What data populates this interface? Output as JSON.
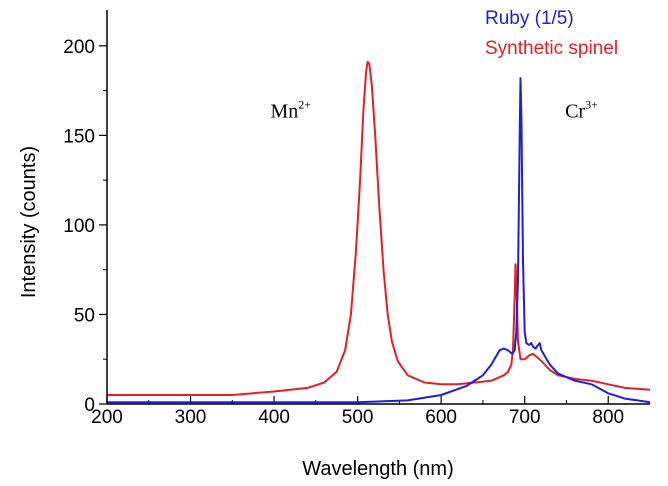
{
  "chart_data": {
    "type": "line",
    "xlabel": "Wavelength (nm)",
    "ylabel": "Intensity (counts)",
    "xlim": [
      200,
      850
    ],
    "ylim": [
      0,
      220
    ],
    "x_ticks": [
      200,
      300,
      400,
      500,
      600,
      700,
      800
    ],
    "y_ticks": [
      0,
      50,
      100,
      150,
      200
    ],
    "legend_position": "top-right",
    "annotations": [
      {
        "base": "Mn",
        "sup": "2+",
        "x": 420,
        "y": 160
      },
      {
        "base": "Cr",
        "sup": "3+",
        "x": 768,
        "y": 160
      }
    ],
    "series": [
      {
        "name": "Ruby (1/5)",
        "color": "#1f1fd6",
        "points": [
          [
            200,
            1
          ],
          [
            400,
            1
          ],
          [
            500,
            1
          ],
          [
            560,
            2
          ],
          [
            600,
            5
          ],
          [
            630,
            10
          ],
          [
            650,
            16
          ],
          [
            660,
            22
          ],
          [
            665,
            26
          ],
          [
            670,
            30
          ],
          [
            675,
            31
          ],
          [
            680,
            30
          ],
          [
            685,
            28
          ],
          [
            688,
            30
          ],
          [
            690,
            40
          ],
          [
            692,
            70
          ],
          [
            694,
            150
          ],
          [
            695,
            182
          ],
          [
            696,
            160
          ],
          [
            698,
            80
          ],
          [
            700,
            40
          ],
          [
            702,
            34
          ],
          [
            705,
            33
          ],
          [
            708,
            34
          ],
          [
            710,
            32
          ],
          [
            713,
            31
          ],
          [
            716,
            33
          ],
          [
            718,
            34
          ],
          [
            720,
            30
          ],
          [
            730,
            22
          ],
          [
            740,
            17
          ],
          [
            760,
            13
          ],
          [
            780,
            11
          ],
          [
            800,
            6
          ],
          [
            820,
            3
          ],
          [
            850,
            1
          ]
        ]
      },
      {
        "name": "Synthetic spinel",
        "color": "#e0202a",
        "points": [
          [
            200,
            5
          ],
          [
            300,
            5
          ],
          [
            350,
            5
          ],
          [
            400,
            7
          ],
          [
            440,
            9
          ],
          [
            460,
            12
          ],
          [
            475,
            18
          ],
          [
            485,
            30
          ],
          [
            492,
            50
          ],
          [
            498,
            85
          ],
          [
            503,
            125
          ],
          [
            507,
            165
          ],
          [
            510,
            185
          ],
          [
            512,
            191
          ],
          [
            514,
            190
          ],
          [
            517,
            178
          ],
          [
            521,
            150
          ],
          [
            526,
            110
          ],
          [
            531,
            75
          ],
          [
            536,
            50
          ],
          [
            541,
            35
          ],
          [
            548,
            24
          ],
          [
            560,
            16
          ],
          [
            580,
            12
          ],
          [
            600,
            11
          ],
          [
            620,
            11
          ],
          [
            640,
            12
          ],
          [
            660,
            13
          ],
          [
            675,
            16
          ],
          [
            680,
            18
          ],
          [
            684,
            22
          ],
          [
            686,
            30
          ],
          [
            688,
            60
          ],
          [
            689,
            78
          ],
          [
            690,
            70
          ],
          [
            692,
            35
          ],
          [
            695,
            25
          ],
          [
            700,
            25
          ],
          [
            705,
            27
          ],
          [
            710,
            28
          ],
          [
            715,
            26
          ],
          [
            720,
            24
          ],
          [
            730,
            19
          ],
          [
            740,
            16
          ],
          [
            760,
            14
          ],
          [
            780,
            13
          ],
          [
            800,
            11
          ],
          [
            820,
            9
          ],
          [
            850,
            8
          ]
        ]
      }
    ]
  }
}
